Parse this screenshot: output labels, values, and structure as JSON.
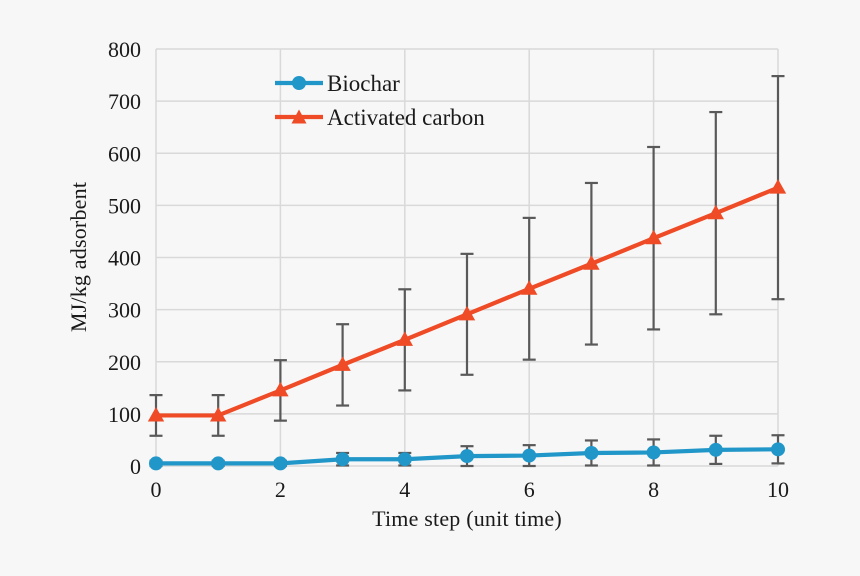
{
  "figure": {
    "background": "#F7F7F7"
  },
  "chart_data": {
    "type": "line",
    "title": "",
    "xlabel": "Time step (unit time)",
    "ylabel": "MJ/kg adsorbent",
    "x": [
      0,
      1,
      2,
      3,
      4,
      5,
      6,
      7,
      8,
      9,
      10
    ],
    "xticks": [
      0,
      2,
      4,
      6,
      8,
      10
    ],
    "xlim": [
      0,
      10
    ],
    "ylim": [
      0,
      800
    ],
    "ytick_step": 100,
    "grid": true,
    "legend_position": "upper-left-inside",
    "grid_color": "#D9D9D9",
    "error_bar_color": "#595959",
    "text_color": "#1A1A1A",
    "series": [
      {
        "name": "Biochar",
        "marker": "circle",
        "color": "#2196C8",
        "values": [
          5,
          5,
          5,
          13,
          13,
          19,
          20,
          25,
          26,
          31,
          32
        ],
        "errors": [
          5,
          5,
          5,
          12,
          12,
          19,
          20,
          24,
          25,
          27,
          27
        ]
      },
      {
        "name": "Activated carbon",
        "marker": "triangle",
        "color": "#EE4B26",
        "values": [
          97,
          97,
          145,
          194,
          242,
          291,
          340,
          388,
          437,
          485,
          534
        ],
        "errors": [
          39,
          39,
          58,
          78,
          97,
          116,
          136,
          155,
          175,
          194,
          214
        ]
      }
    ]
  }
}
